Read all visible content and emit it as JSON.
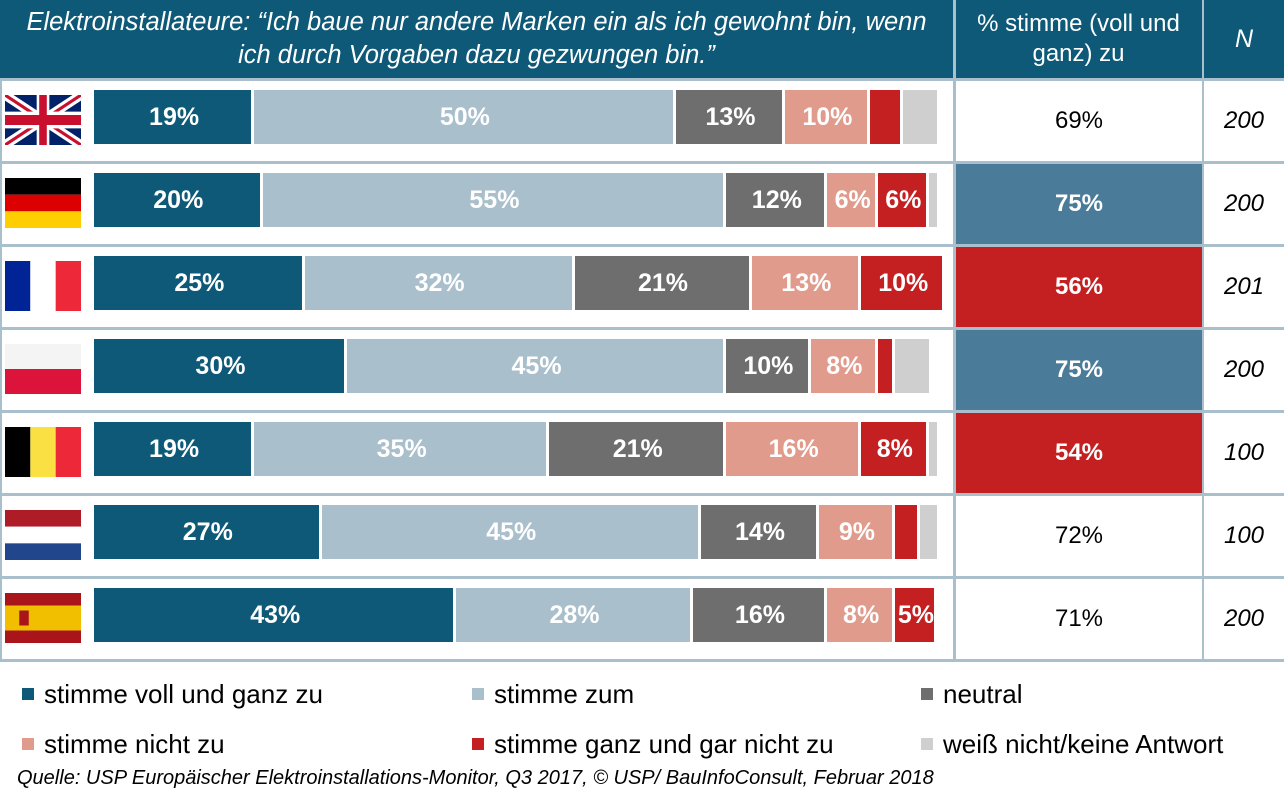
{
  "chart_data": {
    "type": "bar",
    "orientation": "horizontal",
    "stacked": true,
    "title": "Elektroinstallateure: “Ich baue nur andere Marken ein als ich gewohnt bin, wenn ich durch Vorgaben dazu gezwungen bin.”",
    "columns": {
      "agree": "% stimme (voll und ganz) zu",
      "n": "N"
    },
    "categories": [
      "Großbritannien",
      "Deutschland",
      "Frankreich",
      "Polen",
      "Belgien",
      "Niederlande",
      "Spanien"
    ],
    "series": [
      {
        "name": "stimme voll und ganz zu",
        "color": "#0d5977",
        "values": [
          19,
          20,
          25,
          30,
          19,
          27,
          43
        ],
        "labels": [
          "19%",
          "20%",
          "25%",
          "30%",
          "19%",
          "27%",
          "43%"
        ]
      },
      {
        "name": "stimme zum",
        "color": "#a9bfcb",
        "values": [
          50,
          55,
          32,
          45,
          35,
          45,
          28
        ],
        "labels": [
          "50%",
          "55%",
          "32%",
          "45%",
          "35%",
          "45%",
          "28%"
        ]
      },
      {
        "name": "neutral",
        "color": "#6e6e6e",
        "values": [
          13,
          12,
          21,
          10,
          21,
          14,
          16
        ],
        "labels": [
          "13%",
          "12%",
          "21%",
          "10%",
          "21%",
          "14%",
          "16%"
        ]
      },
      {
        "name": "stimme nicht zu",
        "color": "#e09b8c",
        "values": [
          10,
          6,
          13,
          8,
          16,
          9,
          8
        ],
        "labels": [
          "10%",
          "6%",
          "13%",
          "8%",
          "16%",
          "9%",
          "8%"
        ]
      },
      {
        "name": "stimme ganz und gar nicht zu",
        "color": "#c42021",
        "values": [
          4,
          6,
          10,
          2,
          8,
          3,
          5
        ],
        "labels": [
          "",
          "6%",
          "10%",
          "",
          "8%",
          "",
          "5%"
        ]
      },
      {
        "name": "weiß nicht/keine Antwort",
        "color": "#cfcfcf",
        "values": [
          4,
          1,
          0,
          4,
          1,
          2,
          0
        ],
        "labels": [
          "",
          "",
          "",
          "",
          "",
          "",
          ""
        ]
      }
    ],
    "agree_totals": [
      "69%",
      "75%",
      "56%",
      "75%",
      "54%",
      "72%",
      "71%"
    ],
    "agree_highlight": [
      "",
      "#4a7b99",
      "#c42021",
      "#4a7b99",
      "#c42021",
      "",
      ""
    ],
    "n_values": [
      "200",
      "200",
      "201",
      "200",
      "100",
      "100",
      "200"
    ],
    "xlim": [
      0,
      100
    ],
    "legend_position": "bottom",
    "source": "Quelle: USP Europäischer Elektroinstallations-Monitor, Q3 2017, © USP/ BauInfoConsult, Februar 2018"
  }
}
